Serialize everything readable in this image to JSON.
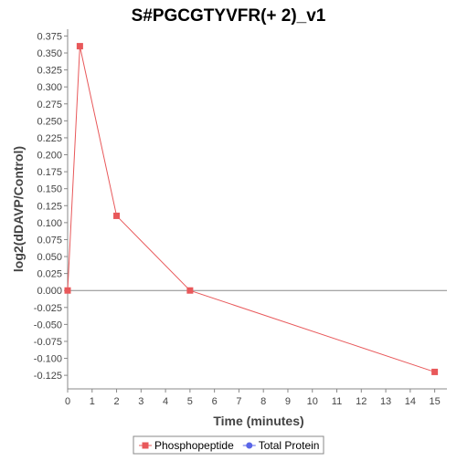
{
  "chart_data": {
    "type": "line",
    "title": "S#PGCGTYVFR(+ 2)_v1",
    "xlabel": "Time (minutes)",
    "ylabel": "log2(dDAVP/Control)",
    "xlim": [
      0,
      15.5
    ],
    "ylim": [
      -0.145,
      0.385
    ],
    "x_ticks": [
      0,
      1,
      2,
      3,
      4,
      5,
      6,
      7,
      8,
      9,
      10,
      11,
      12,
      13,
      14,
      15
    ],
    "x_tick_labels": [
      "0",
      "1",
      "2",
      "3",
      "4",
      "5",
      "6",
      "7",
      "8",
      "9",
      "10",
      "11",
      "12",
      "13",
      "14",
      "15"
    ],
    "y_ticks": [
      -0.125,
      -0.1,
      -0.075,
      -0.05,
      -0.025,
      0,
      0.025,
      0.05,
      0.075,
      0.1,
      0.125,
      0.15,
      0.175,
      0.2,
      0.225,
      0.25,
      0.275,
      0.3,
      0.325,
      0.35,
      0.375
    ],
    "y_tick_labels": [
      "-0.125",
      "-0.100",
      "-0.075",
      "-0.050",
      "-0.025",
      "0.000",
      "0.025",
      "0.050",
      "0.075",
      "0.100",
      "0.125",
      "0.150",
      "0.175",
      "0.200",
      "0.225",
      "0.250",
      "0.275",
      "0.300",
      "0.325",
      "0.350",
      "0.375"
    ],
    "grid": false,
    "zero_line": true,
    "legend_position": "bottom",
    "series": [
      {
        "name": "Phosphopeptide",
        "color": "#e8585a",
        "marker": "square",
        "x": [
          0,
          0.5,
          2,
          5,
          15
        ],
        "y": [
          0.0,
          0.36,
          0.11,
          0.0,
          -0.12
        ]
      },
      {
        "name": "Total Protein",
        "color": "#5a66e8",
        "marker": "circle",
        "x": [],
        "y": []
      }
    ]
  }
}
